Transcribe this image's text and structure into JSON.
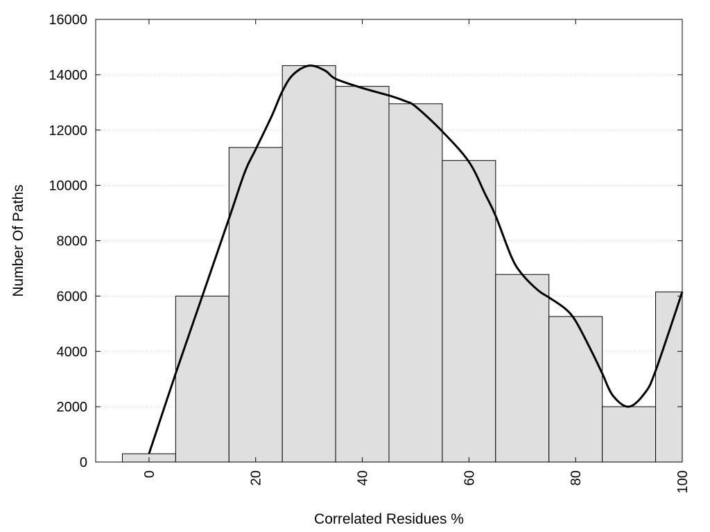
{
  "chart_data": {
    "type": "bar",
    "xlabel": "Correlated Residues %",
    "ylabel": "Number Of Paths",
    "xlim": [
      -10,
      100
    ],
    "ylim": [
      0,
      16000
    ],
    "x_ticks": [
      0,
      20,
      40,
      60,
      80,
      100
    ],
    "y_ticks": [
      0,
      2000,
      4000,
      6000,
      8000,
      10000,
      12000,
      14000,
      16000
    ],
    "grid": "horizontal dotted",
    "bar_width": 10,
    "bars": [
      {
        "x": 0,
        "value": 300
      },
      {
        "x": 10,
        "value": 6000
      },
      {
        "x": 20,
        "value": 11370
      },
      {
        "x": 30,
        "value": 14330
      },
      {
        "x": 40,
        "value": 13580
      },
      {
        "x": 50,
        "value": 12950
      },
      {
        "x": 60,
        "value": 10900
      },
      {
        "x": 70,
        "value": 6780
      },
      {
        "x": 80,
        "value": 5260
      },
      {
        "x": 90,
        "value": 2000
      },
      {
        "x": 100,
        "value": 6150
      }
    ],
    "colors": {
      "bar_fill": "#dfdfdf",
      "bar_stroke": "#000000",
      "curve": "#000000"
    },
    "curve": {
      "type": "smooth line",
      "points": [
        [
          0,
          300
        ],
        [
          5,
          3200
        ],
        [
          10,
          6000
        ],
        [
          15,
          8800
        ],
        [
          18,
          10500
        ],
        [
          20,
          11300
        ],
        [
          23,
          12500
        ],
        [
          25,
          13400
        ],
        [
          27,
          14000
        ],
        [
          30,
          14330
        ],
        [
          33,
          14150
        ],
        [
          35,
          13850
        ],
        [
          40,
          13520
        ],
        [
          45,
          13250
        ],
        [
          48,
          13050
        ],
        [
          50,
          12850
        ],
        [
          55,
          11950
        ],
        [
          60,
          10850
        ],
        [
          63,
          9700
        ],
        [
          65,
          8900
        ],
        [
          68,
          7400
        ],
        [
          70,
          6780
        ],
        [
          73,
          6200
        ],
        [
          75,
          5950
        ],
        [
          78,
          5550
        ],
        [
          80,
          5100
        ],
        [
          83,
          4000
        ],
        [
          85,
          3200
        ],
        [
          87,
          2400
        ],
        [
          90,
          2000
        ],
        [
          93,
          2500
        ],
        [
          95,
          3300
        ],
        [
          100,
          6150
        ]
      ]
    }
  }
}
